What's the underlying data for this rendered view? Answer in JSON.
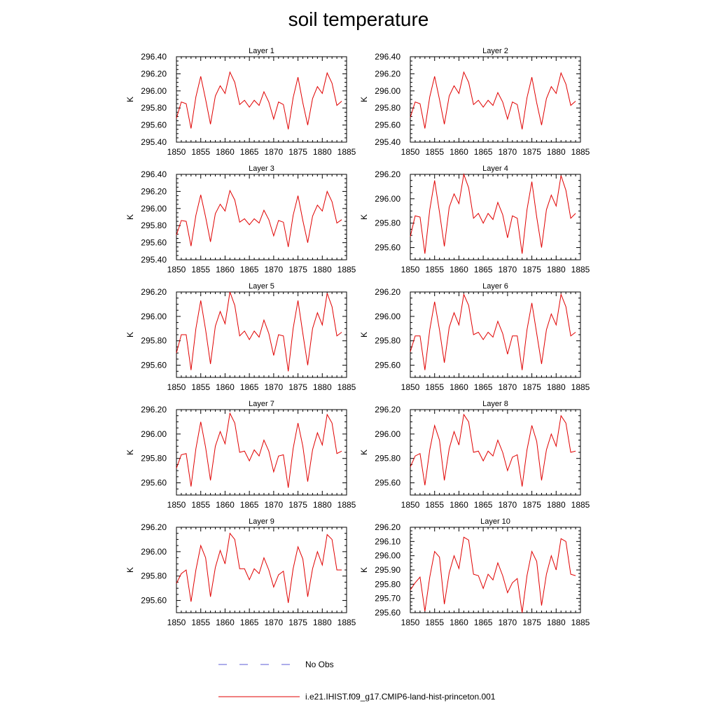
{
  "title": "soil temperature",
  "legend": {
    "items": [
      {
        "label": "No Obs",
        "color": "#5b5bd6",
        "style": "dashed"
      },
      {
        "label": "i.e21.IHIST.f09_g17.CMIP6-land-hist-princeton.001",
        "color": "#e00000",
        "style": "solid"
      }
    ]
  },
  "chart_data": [
    {
      "type": "line",
      "title": "Layer 1",
      "ylabel": "K",
      "x": [
        1850,
        1851,
        1852,
        1853,
        1854,
        1855,
        1856,
        1857,
        1858,
        1859,
        1860,
        1861,
        1862,
        1863,
        1864,
        1865,
        1866,
        1867,
        1868,
        1869,
        1870,
        1871,
        1872,
        1873,
        1874,
        1875,
        1876,
        1877,
        1878,
        1879,
        1880,
        1881,
        1882,
        1883,
        1884
      ],
      "xlim": [
        1850,
        1885
      ],
      "xticks": [
        1850,
        1855,
        1860,
        1865,
        1870,
        1875,
        1880,
        1885
      ],
      "ylim": [
        295.4,
        296.4
      ],
      "yticks": [
        295.4,
        295.6,
        295.8,
        296.0,
        296.2,
        296.4
      ],
      "series": [
        {
          "name": "i.e21.IHIST.f09_g17.CMIP6-land-hist-princeton.001",
          "color": "#e00000",
          "values": [
            295.68,
            295.87,
            295.85,
            295.56,
            295.93,
            296.17,
            295.9,
            295.61,
            295.94,
            296.06,
            295.97,
            296.22,
            296.1,
            295.84,
            295.89,
            295.81,
            295.89,
            295.83,
            295.99,
            295.87,
            295.67,
            295.87,
            295.84,
            295.55,
            295.92,
            296.16,
            295.86,
            295.6,
            295.91,
            296.05,
            295.97,
            296.21,
            296.09,
            295.83,
            295.88
          ]
        }
      ]
    },
    {
      "type": "line",
      "title": "Layer 2",
      "ylabel": "K",
      "x": [
        1850,
        1851,
        1852,
        1853,
        1854,
        1855,
        1856,
        1857,
        1858,
        1859,
        1860,
        1861,
        1862,
        1863,
        1864,
        1865,
        1866,
        1867,
        1868,
        1869,
        1870,
        1871,
        1872,
        1873,
        1874,
        1875,
        1876,
        1877,
        1878,
        1879,
        1880,
        1881,
        1882,
        1883,
        1884
      ],
      "xlim": [
        1850,
        1885
      ],
      "xticks": [
        1850,
        1855,
        1860,
        1865,
        1870,
        1875,
        1880,
        1885
      ],
      "ylim": [
        295.4,
        296.4
      ],
      "yticks": [
        295.4,
        295.6,
        295.8,
        296.0,
        296.2,
        296.4
      ],
      "series": [
        {
          "name": "i.e21.IHIST.f09_g17.CMIP6-land-hist-princeton.001",
          "color": "#e00000",
          "values": [
            295.69,
            295.87,
            295.85,
            295.56,
            295.93,
            296.17,
            295.9,
            295.61,
            295.94,
            296.06,
            295.97,
            296.22,
            296.1,
            295.84,
            295.89,
            295.81,
            295.89,
            295.83,
            295.98,
            295.87,
            295.67,
            295.87,
            295.84,
            295.55,
            295.92,
            296.16,
            295.86,
            295.6,
            295.91,
            296.05,
            295.97,
            296.21,
            296.08,
            295.83,
            295.88
          ]
        }
      ]
    },
    {
      "type": "line",
      "title": "Layer 3",
      "ylabel": "K",
      "x": [
        1850,
        1851,
        1852,
        1853,
        1854,
        1855,
        1856,
        1857,
        1858,
        1859,
        1860,
        1861,
        1862,
        1863,
        1864,
        1865,
        1866,
        1867,
        1868,
        1869,
        1870,
        1871,
        1872,
        1873,
        1874,
        1875,
        1876,
        1877,
        1878,
        1879,
        1880,
        1881,
        1882,
        1883,
        1884
      ],
      "xlim": [
        1850,
        1885
      ],
      "xticks": [
        1850,
        1855,
        1860,
        1865,
        1870,
        1875,
        1880,
        1885
      ],
      "ylim": [
        295.4,
        296.4
      ],
      "yticks": [
        295.4,
        295.6,
        295.8,
        296.0,
        296.2,
        296.4
      ],
      "series": [
        {
          "name": "i.e21.IHIST.f09_g17.CMIP6-land-hist-princeton.001",
          "color": "#e00000",
          "values": [
            295.69,
            295.86,
            295.85,
            295.56,
            295.92,
            296.16,
            295.9,
            295.61,
            295.94,
            296.05,
            295.97,
            296.21,
            296.1,
            295.84,
            295.88,
            295.81,
            295.88,
            295.83,
            295.98,
            295.87,
            295.68,
            295.86,
            295.84,
            295.55,
            295.92,
            296.15,
            295.86,
            295.6,
            295.91,
            296.04,
            295.97,
            296.2,
            296.08,
            295.83,
            295.87
          ]
        }
      ]
    },
    {
      "type": "line",
      "title": "Layer 4",
      "ylabel": "K",
      "x": [
        1850,
        1851,
        1852,
        1853,
        1854,
        1855,
        1856,
        1857,
        1858,
        1859,
        1860,
        1861,
        1862,
        1863,
        1864,
        1865,
        1866,
        1867,
        1868,
        1869,
        1870,
        1871,
        1872,
        1873,
        1874,
        1875,
        1876,
        1877,
        1878,
        1879,
        1880,
        1881,
        1882,
        1883,
        1884
      ],
      "xlim": [
        1850,
        1885
      ],
      "xticks": [
        1850,
        1855,
        1860,
        1865,
        1870,
        1875,
        1880,
        1885
      ],
      "ylim": [
        295.5,
        296.2
      ],
      "yticks": [
        295.6,
        295.8,
        296.0,
        296.2
      ],
      "series": [
        {
          "name": "i.e21.IHIST.f09_g17.CMIP6-land-hist-princeton.001",
          "color": "#e00000",
          "values": [
            295.69,
            295.86,
            295.85,
            295.55,
            295.91,
            296.15,
            295.89,
            295.61,
            295.93,
            296.04,
            295.96,
            296.2,
            296.09,
            295.84,
            295.88,
            295.8,
            295.88,
            295.83,
            295.97,
            295.87,
            295.68,
            295.86,
            295.84,
            295.55,
            295.91,
            296.14,
            295.85,
            295.6,
            295.91,
            296.03,
            295.94,
            296.19,
            296.07,
            295.84,
            295.88
          ]
        }
      ]
    },
    {
      "type": "line",
      "title": "Layer 5",
      "ylabel": "K",
      "x": [
        1850,
        1851,
        1852,
        1853,
        1854,
        1855,
        1856,
        1857,
        1858,
        1859,
        1860,
        1861,
        1862,
        1863,
        1864,
        1865,
        1866,
        1867,
        1868,
        1869,
        1870,
        1871,
        1872,
        1873,
        1874,
        1875,
        1876,
        1877,
        1878,
        1879,
        1880,
        1881,
        1882,
        1883,
        1884
      ],
      "xlim": [
        1850,
        1885
      ],
      "xticks": [
        1850,
        1855,
        1860,
        1865,
        1870,
        1875,
        1880,
        1885
      ],
      "ylim": [
        295.5,
        296.2
      ],
      "yticks": [
        295.6,
        295.8,
        296.0,
        296.2
      ],
      "series": [
        {
          "name": "i.e21.IHIST.f09_g17.CMIP6-land-hist-princeton.001",
          "color": "#e00000",
          "values": [
            295.7,
            295.85,
            295.85,
            295.56,
            295.9,
            296.13,
            295.89,
            295.61,
            295.92,
            296.04,
            295.94,
            296.2,
            296.09,
            295.84,
            295.88,
            295.81,
            295.88,
            295.83,
            295.97,
            295.86,
            295.68,
            295.85,
            295.84,
            295.55,
            295.9,
            296.13,
            295.86,
            295.6,
            295.9,
            296.03,
            295.93,
            296.19,
            296.08,
            295.84,
            295.87
          ]
        }
      ]
    },
    {
      "type": "line",
      "title": "Layer 6",
      "ylabel": "K",
      "x": [
        1850,
        1851,
        1852,
        1853,
        1854,
        1855,
        1856,
        1857,
        1858,
        1859,
        1860,
        1861,
        1862,
        1863,
        1864,
        1865,
        1866,
        1867,
        1868,
        1869,
        1870,
        1871,
        1872,
        1873,
        1874,
        1875,
        1876,
        1877,
        1878,
        1879,
        1880,
        1881,
        1882,
        1883,
        1884
      ],
      "xlim": [
        1850,
        1885
      ],
      "xticks": [
        1850,
        1855,
        1860,
        1865,
        1870,
        1875,
        1880,
        1885
      ],
      "ylim": [
        295.5,
        296.2
      ],
      "yticks": [
        295.6,
        295.8,
        296.0,
        296.2
      ],
      "series": [
        {
          "name": "i.e21.IHIST.f09_g17.CMIP6-land-hist-princeton.001",
          "color": "#e00000",
          "values": [
            295.71,
            295.84,
            295.84,
            295.56,
            295.89,
            296.12,
            295.89,
            295.62,
            295.91,
            296.03,
            295.93,
            296.18,
            296.09,
            295.85,
            295.87,
            295.81,
            295.87,
            295.83,
            295.96,
            295.86,
            295.69,
            295.84,
            295.84,
            295.56,
            295.89,
            296.11,
            295.86,
            295.61,
            295.89,
            296.02,
            295.93,
            296.18,
            296.08,
            295.84,
            295.87
          ]
        }
      ]
    },
    {
      "type": "line",
      "title": "Layer 7",
      "ylabel": "K",
      "x": [
        1850,
        1851,
        1852,
        1853,
        1854,
        1855,
        1856,
        1857,
        1858,
        1859,
        1860,
        1861,
        1862,
        1863,
        1864,
        1865,
        1866,
        1867,
        1868,
        1869,
        1870,
        1871,
        1872,
        1873,
        1874,
        1875,
        1876,
        1877,
        1878,
        1879,
        1880,
        1881,
        1882,
        1883,
        1884
      ],
      "xlim": [
        1850,
        1885
      ],
      "xticks": [
        1850,
        1855,
        1860,
        1865,
        1870,
        1875,
        1880,
        1885
      ],
      "ylim": [
        295.5,
        296.2
      ],
      "yticks": [
        295.6,
        295.8,
        296.0,
        296.2
      ],
      "series": [
        {
          "name": "i.e21.IHIST.f09_g17.CMIP6-land-hist-princeton.001",
          "color": "#e00000",
          "values": [
            295.72,
            295.83,
            295.84,
            295.57,
            295.88,
            296.1,
            295.89,
            295.62,
            295.9,
            296.02,
            295.92,
            296.17,
            296.09,
            295.85,
            295.86,
            295.78,
            295.87,
            295.82,
            295.95,
            295.86,
            295.69,
            295.82,
            295.83,
            295.56,
            295.88,
            296.09,
            295.9,
            295.61,
            295.87,
            296.01,
            295.91,
            296.16,
            296.09,
            295.84,
            295.86
          ]
        }
      ]
    },
    {
      "type": "line",
      "title": "Layer 8",
      "ylabel": "K",
      "x": [
        1850,
        1851,
        1852,
        1853,
        1854,
        1855,
        1856,
        1857,
        1858,
        1859,
        1860,
        1861,
        1862,
        1863,
        1864,
        1865,
        1866,
        1867,
        1868,
        1869,
        1870,
        1871,
        1872,
        1873,
        1874,
        1875,
        1876,
        1877,
        1878,
        1879,
        1880,
        1881,
        1882,
        1883,
        1884
      ],
      "xlim": [
        1850,
        1885
      ],
      "xticks": [
        1850,
        1855,
        1860,
        1865,
        1870,
        1875,
        1880,
        1885
      ],
      "ylim": [
        295.5,
        296.2
      ],
      "yticks": [
        295.6,
        295.8,
        296.0,
        296.2
      ],
      "series": [
        {
          "name": "i.e21.IHIST.f09_g17.CMIP6-land-hist-princeton.001",
          "color": "#e00000",
          "values": [
            295.73,
            295.82,
            295.84,
            295.58,
            295.87,
            296.07,
            295.95,
            295.62,
            295.88,
            296.02,
            295.91,
            296.16,
            296.1,
            295.85,
            295.86,
            295.78,
            295.86,
            295.82,
            295.95,
            295.85,
            295.7,
            295.81,
            295.83,
            295.57,
            295.87,
            296.07,
            295.94,
            295.62,
            295.87,
            296.0,
            295.9,
            296.15,
            296.09,
            295.85,
            295.86
          ]
        }
      ]
    },
    {
      "type": "line",
      "title": "Layer 9",
      "ylabel": "K",
      "x": [
        1850,
        1851,
        1852,
        1853,
        1854,
        1855,
        1856,
        1857,
        1858,
        1859,
        1860,
        1861,
        1862,
        1863,
        1864,
        1865,
        1866,
        1867,
        1868,
        1869,
        1870,
        1871,
        1872,
        1873,
        1874,
        1875,
        1876,
        1877,
        1878,
        1879,
        1880,
        1881,
        1882,
        1883,
        1884
      ],
      "xlim": [
        1850,
        1885
      ],
      "xticks": [
        1850,
        1855,
        1860,
        1865,
        1870,
        1875,
        1880,
        1885
      ],
      "ylim": [
        295.5,
        296.2
      ],
      "yticks": [
        295.6,
        295.8,
        296.0,
        296.2
      ],
      "series": [
        {
          "name": "i.e21.IHIST.f09_g17.CMIP6-land-hist-princeton.001",
          "color": "#e00000",
          "values": [
            295.74,
            295.82,
            295.85,
            295.59,
            295.85,
            296.05,
            295.95,
            295.63,
            295.87,
            296.01,
            295.9,
            296.15,
            296.1,
            295.86,
            295.86,
            295.77,
            295.86,
            295.82,
            295.95,
            295.85,
            295.71,
            295.81,
            295.84,
            295.58,
            295.86,
            296.04,
            295.94,
            295.63,
            295.86,
            296.0,
            295.89,
            296.14,
            296.1,
            295.85,
            295.85
          ]
        }
      ]
    },
    {
      "type": "line",
      "title": "Layer 10",
      "ylabel": "K",
      "x": [
        1850,
        1851,
        1852,
        1853,
        1854,
        1855,
        1856,
        1857,
        1858,
        1859,
        1860,
        1861,
        1862,
        1863,
        1864,
        1865,
        1866,
        1867,
        1868,
        1869,
        1870,
        1871,
        1872,
        1873,
        1874,
        1875,
        1876,
        1877,
        1878,
        1879,
        1880,
        1881,
        1882,
        1883,
        1884
      ],
      "xlim": [
        1850,
        1885
      ],
      "xticks": [
        1850,
        1855,
        1860,
        1865,
        1870,
        1875,
        1880,
        1885
      ],
      "ylim": [
        295.6,
        296.2
      ],
      "yticks": [
        295.6,
        295.7,
        295.8,
        295.9,
        296.0,
        296.1,
        296.2
      ],
      "series": [
        {
          "name": "i.e21.IHIST.f09_g17.CMIP6-land-hist-princeton.001",
          "color": "#e00000",
          "values": [
            295.76,
            295.81,
            295.85,
            295.61,
            295.85,
            296.03,
            295.99,
            295.66,
            295.88,
            296.0,
            295.91,
            296.13,
            296.11,
            295.87,
            295.86,
            295.77,
            295.87,
            295.83,
            295.95,
            295.86,
            295.74,
            295.81,
            295.84,
            295.6,
            295.86,
            296.03,
            295.96,
            295.65,
            295.87,
            296.0,
            295.9,
            296.12,
            296.1,
            295.87,
            295.86
          ]
        }
      ]
    }
  ]
}
